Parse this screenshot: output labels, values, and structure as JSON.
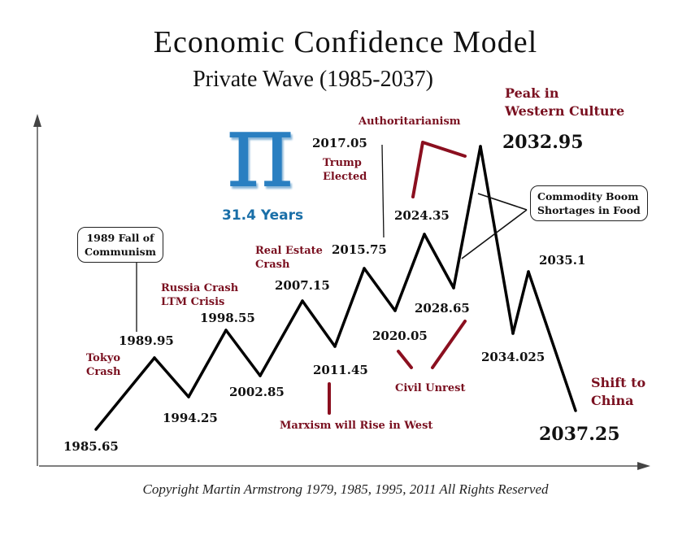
{
  "title": "Economic Confidence Model",
  "subtitle": "Private Wave (1985-2037)",
  "pi_symbol": "π",
  "pi_caption": "31.4 Years",
  "copyright": "Copyright Martin Armstrong 1979, 1985, 1995, 2011 All Rights Reserved",
  "wave_points": [
    {
      "label": "1985.65",
      "phase": "low"
    },
    {
      "label": "1989.95",
      "phase": "high"
    },
    {
      "label": "1994.25",
      "phase": "low"
    },
    {
      "label": "1998.55",
      "phase": "high"
    },
    {
      "label": "2002.85",
      "phase": "low"
    },
    {
      "label": "2007.15",
      "phase": "high"
    },
    {
      "label": "2011.45",
      "phase": "low"
    },
    {
      "label": "2015.75",
      "phase": "high"
    },
    {
      "label": "2020.05",
      "phase": "low"
    },
    {
      "label": "2024.35",
      "phase": "high"
    },
    {
      "label": "2028.65",
      "phase": "low"
    },
    {
      "label": "2032.95",
      "phase": "peak"
    },
    {
      "label": "2034.025",
      "phase": "low"
    },
    {
      "label": "2035.1",
      "phase": "high"
    },
    {
      "label": "2037.25",
      "phase": "end"
    }
  ],
  "extra_years": [
    "2017.05"
  ],
  "events": {
    "tokyo_crash": [
      "Tokyo",
      "Crash"
    ],
    "russia_crash": [
      "Russia Crash",
      "LTM Crisis"
    ],
    "real_estate_crash": [
      "Real Estate",
      "Crash"
    ],
    "trump_elected": [
      "Trump",
      "Elected"
    ],
    "authoritarianism": "Authoritarianism",
    "peak_western": [
      "Peak in",
      "Western Culture"
    ],
    "civil_unrest": "Civil Unrest",
    "marxism": "Marxism will Rise in West",
    "shift_china": [
      "Shift to",
      "China"
    ]
  },
  "boxes": {
    "communism": [
      "1989 Fall of",
      "Communism"
    ],
    "commodity": [
      "Commodity Boom",
      "Shortages in Food"
    ]
  },
  "colors": {
    "wave": "#000000",
    "event_text": "#7a1020",
    "arrow": "#8b0f1f",
    "pi": "#2a7fc1",
    "pi_caption": "#1a6fa8"
  }
}
